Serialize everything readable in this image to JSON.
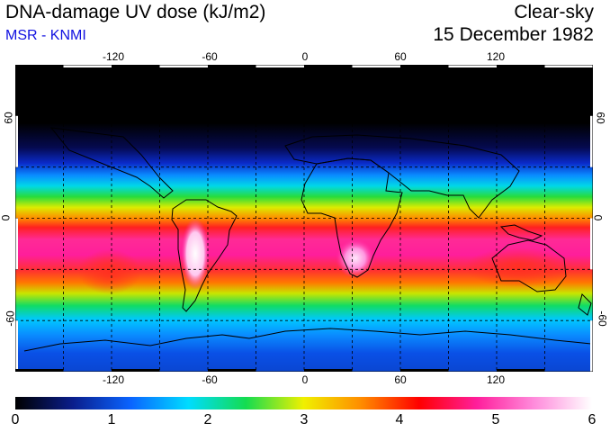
{
  "header": {
    "title": "DNA-damage UV dose (kJ/m2)",
    "source": "MSR - KNMI",
    "sky_condition": "Clear-sky",
    "date": "15 December 1982",
    "source_color": "#1010e0"
  },
  "map": {
    "longitude_ticks": [
      "-120",
      "-60",
      "0",
      "60",
      "120"
    ],
    "latitude_ticks": [
      "60",
      "0",
      "-60"
    ],
    "longitude_values": [
      -120,
      -60,
      0,
      60,
      120
    ],
    "latitude_values": [
      60,
      0,
      -60
    ],
    "lon_range": [
      -180,
      180
    ],
    "lat_range": [
      -90,
      90
    ],
    "gridlines": "dashed every 30 degrees"
  },
  "colorbar": {
    "labels": [
      "0",
      "1",
      "2",
      "3",
      "4",
      "5",
      "6"
    ],
    "range": [
      0,
      6
    ],
    "colors": [
      "#000000",
      "#0a1e8c",
      "#0a64ff",
      "#00dcff",
      "#14dc50",
      "#f0f000",
      "#ff8c00",
      "#ff0000",
      "#ff1e9b",
      "#ff8cdc",
      "#ffffff"
    ]
  }
}
